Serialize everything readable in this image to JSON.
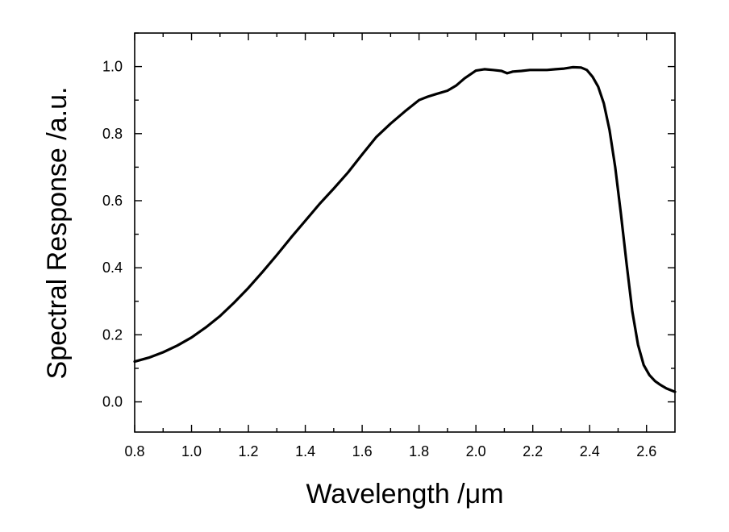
{
  "chart_data": {
    "type": "line",
    "title": "",
    "xlabel": "Wavelength /μm",
    "ylabel": "Spectral Response /a.u.",
    "xlim": [
      0.8,
      2.7
    ],
    "ylim": [
      -0.09,
      1.1
    ],
    "xticks": [
      0.8,
      1.0,
      1.2,
      1.4,
      1.6,
      1.8,
      2.0,
      2.2,
      2.4,
      2.6
    ],
    "xtick_labels": [
      "0.8",
      "1.0",
      "1.2",
      "1.4",
      "1.6",
      "1.8",
      "2.0",
      "2.2",
      "2.4",
      "2.6"
    ],
    "yticks": [
      0.0,
      0.2,
      0.4,
      0.6,
      0.8,
      1.0
    ],
    "ytick_labels": [
      "0.0",
      "0.2",
      "0.4",
      "0.6",
      "0.8",
      "1.0"
    ],
    "grid": false,
    "legend": "none",
    "line_color": "#000000",
    "series": [
      {
        "x": [
          0.8,
          0.85,
          0.9,
          0.95,
          1.0,
          1.05,
          1.1,
          1.15,
          1.2,
          1.25,
          1.3,
          1.35,
          1.4,
          1.45,
          1.5,
          1.55,
          1.6,
          1.65,
          1.7,
          1.75,
          1.8,
          1.83,
          1.86,
          1.9,
          1.93,
          1.96,
          2.0,
          2.03,
          2.06,
          2.09,
          2.11,
          2.13,
          2.16,
          2.19,
          2.22,
          2.25,
          2.28,
          2.31,
          2.34,
          2.37,
          2.39,
          2.41,
          2.43,
          2.45,
          2.47,
          2.49,
          2.51,
          2.53,
          2.55,
          2.57,
          2.59,
          2.61,
          2.63,
          2.65,
          2.67,
          2.7
        ],
        "y": [
          0.12,
          0.132,
          0.148,
          0.168,
          0.192,
          0.222,
          0.256,
          0.296,
          0.34,
          0.388,
          0.438,
          0.49,
          0.54,
          0.59,
          0.636,
          0.684,
          0.738,
          0.79,
          0.83,
          0.866,
          0.9,
          0.91,
          0.918,
          0.928,
          0.943,
          0.965,
          0.988,
          0.992,
          0.99,
          0.987,
          0.98,
          0.985,
          0.987,
          0.99,
          0.99,
          0.99,
          0.992,
          0.994,
          0.998,
          0.997,
          0.99,
          0.97,
          0.94,
          0.89,
          0.81,
          0.7,
          0.56,
          0.41,
          0.27,
          0.17,
          0.11,
          0.08,
          0.062,
          0.05,
          0.04,
          0.03
        ]
      }
    ]
  }
}
